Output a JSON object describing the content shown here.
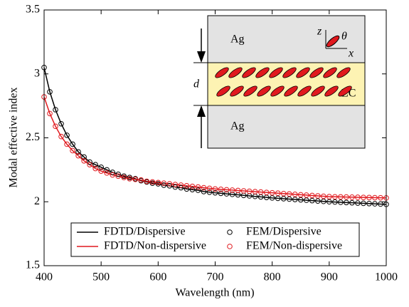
{
  "chart_data": {
    "type": "line",
    "x_label": "Wavelength (nm)",
    "y_label": "Modal effective index",
    "xlim": [
      400,
      1000
    ],
    "xticks": [
      400,
      500,
      600,
      700,
      800,
      900,
      1000
    ],
    "ylim": [
      1.5,
      3.5
    ],
    "yticks": [
      1.5,
      2,
      2.5,
      3,
      3.5
    ],
    "x": [
      400,
      410,
      420,
      430,
      440,
      450,
      460,
      470,
      480,
      490,
      500,
      510,
      520,
      530,
      540,
      550,
      560,
      570,
      580,
      590,
      600,
      610,
      620,
      630,
      640,
      650,
      660,
      670,
      680,
      690,
      700,
      710,
      720,
      730,
      740,
      750,
      760,
      770,
      780,
      790,
      800,
      810,
      820,
      830,
      840,
      850,
      860,
      870,
      880,
      890,
      900,
      910,
      920,
      930,
      940,
      950,
      960,
      970,
      980,
      990,
      1000
    ],
    "series": [
      {
        "name": "FDTD/Dispersive",
        "style": "line",
        "color": "#000000",
        "values": [
          3.05,
          2.86,
          2.72,
          2.61,
          2.52,
          2.45,
          2.39,
          2.35,
          2.31,
          2.29,
          2.27,
          2.25,
          2.23,
          2.215,
          2.2,
          2.19,
          2.18,
          2.165,
          2.155,
          2.145,
          2.14,
          2.13,
          2.125,
          2.115,
          2.11,
          2.1,
          2.095,
          2.09,
          2.08,
          2.075,
          2.07,
          2.066,
          2.062,
          2.058,
          2.054,
          2.05,
          2.046,
          2.042,
          2.038,
          2.034,
          2.03,
          2.027,
          2.024,
          2.021,
          2.018,
          2.015,
          2.012,
          2.009,
          2.006,
          2.003,
          2.0,
          1.998,
          1.996,
          1.994,
          1.992,
          1.99,
          1.988,
          1.986,
          1.984,
          1.982,
          1.98
        ]
      },
      {
        "name": "FDTD/Non-dispersive",
        "style": "line",
        "color": "#e0191e",
        "values": [
          2.82,
          2.69,
          2.59,
          2.51,
          2.45,
          2.4,
          2.36,
          2.32,
          2.29,
          2.26,
          2.24,
          2.225,
          2.21,
          2.2,
          2.19,
          2.18,
          2.175,
          2.17,
          2.16,
          2.155,
          2.15,
          2.145,
          2.14,
          2.135,
          2.13,
          2.125,
          2.12,
          2.115,
          2.11,
          2.105,
          2.1,
          2.097,
          2.094,
          2.091,
          2.088,
          2.085,
          2.082,
          2.079,
          2.076,
          2.073,
          2.07,
          2.067,
          2.064,
          2.061,
          2.058,
          2.055,
          2.052,
          2.049,
          2.046,
          2.043,
          2.04,
          2.039,
          2.038,
          2.037,
          2.036,
          2.035,
          2.034,
          2.033,
          2.032,
          2.031,
          2.03
        ]
      },
      {
        "name": "FEM/Dispersive",
        "style": "marker",
        "color": "#000000",
        "values": [
          3.05,
          2.86,
          2.72,
          2.61,
          2.52,
          2.45,
          2.39,
          2.35,
          2.31,
          2.29,
          2.27,
          2.25,
          2.23,
          2.215,
          2.2,
          2.19,
          2.18,
          2.165,
          2.155,
          2.145,
          2.14,
          2.13,
          2.125,
          2.115,
          2.11,
          2.1,
          2.095,
          2.09,
          2.08,
          2.075,
          2.07,
          2.066,
          2.062,
          2.058,
          2.054,
          2.05,
          2.046,
          2.042,
          2.038,
          2.034,
          2.03,
          2.027,
          2.024,
          2.021,
          2.018,
          2.015,
          2.012,
          2.009,
          2.006,
          2.003,
          2.0,
          1.998,
          1.996,
          1.994,
          1.992,
          1.99,
          1.988,
          1.986,
          1.984,
          1.982,
          1.98
        ]
      },
      {
        "name": "FEM/Non-dispersive",
        "style": "marker",
        "color": "#e0191e",
        "values": [
          2.82,
          2.69,
          2.59,
          2.51,
          2.45,
          2.4,
          2.36,
          2.32,
          2.29,
          2.26,
          2.24,
          2.225,
          2.21,
          2.2,
          2.19,
          2.18,
          2.175,
          2.17,
          2.16,
          2.155,
          2.15,
          2.145,
          2.14,
          2.135,
          2.13,
          2.125,
          2.12,
          2.115,
          2.11,
          2.105,
          2.1,
          2.097,
          2.094,
          2.091,
          2.088,
          2.085,
          2.082,
          2.079,
          2.076,
          2.073,
          2.07,
          2.067,
          2.064,
          2.061,
          2.058,
          2.055,
          2.052,
          2.049,
          2.046,
          2.043,
          2.04,
          2.039,
          2.038,
          2.037,
          2.036,
          2.035,
          2.034,
          2.033,
          2.032,
          2.031,
          2.03
        ]
      }
    ],
    "inset": {
      "top_layer": "Ag",
      "middle_layer": "LC",
      "bottom_layer": "Ag",
      "thickness": "d",
      "axis_z": "z",
      "axis_x": "x",
      "angle": "θ"
    }
  }
}
